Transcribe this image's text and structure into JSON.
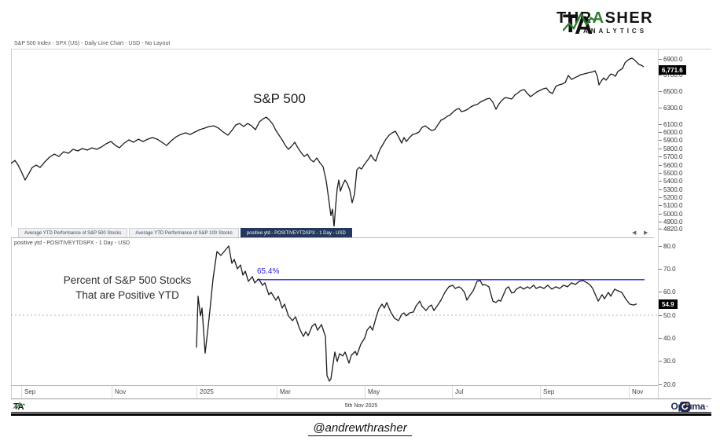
{
  "branding": {
    "monogram": "TA",
    "name_pre": "THR",
    "name_a": "A",
    "name_post": "SHER",
    "sub": "ANALYTICS"
  },
  "window": {
    "title": "S&P 500 Index - SPX (US) - Daily Line Chart - USD - No Layout"
  },
  "tabs": {
    "items": [
      {
        "label": "Average YTD Performance of S&P 500 Stocks",
        "active": false
      },
      {
        "label": "Average YTD Performance of S&P 100 Stocks",
        "active": false
      },
      {
        "label": "positive ytd - POSITIVEYTDSPX - 1 Day - USD",
        "active": true
      }
    ]
  },
  "icons": {
    "tab_scroll_left": "◀",
    "tab_scroll_right": "▶",
    "axis_collapse": "‹"
  },
  "bottom_panel": {
    "header": "positive ytd - POSITIVEYTDSPX - 1 Day - USD"
  },
  "annotations": {
    "sp500_label": "S&P 500",
    "breadth_line1": "Percent of S&P 500 Stocks",
    "breadth_line2": "That are Positive YTD",
    "threshold_label": "65.4%"
  },
  "badges": {
    "sp500_last": "6,771.6",
    "breadth_last": "54.9"
  },
  "x_axis": {
    "labels": [
      "Sep",
      "Nov",
      "2025",
      "Mar",
      "May",
      "Jul",
      "Sep",
      "Nov"
    ]
  },
  "footer": {
    "date": "5th Nov 2025",
    "optuma_name": "Optuma"
  },
  "caption": "@andrewthrasher",
  "colors": {
    "line": "#1c1c1c",
    "threshold_blue": "#2323d9",
    "active_tab": "#24375c",
    "brand_green": "#2f7d33",
    "optuma_navy": "#1c2b52",
    "optuma_orange": "#ef7d23"
  },
  "chart_data": [
    {
      "type": "line",
      "title": "S&P 500",
      "name": "S&P 500 Index - SPX (US) - Daily Line Chart - USD",
      "last": 6771.6,
      "ylim": [
        4820,
        6950
      ],
      "y_ticks": [
        6900,
        6700,
        6500,
        6300,
        6100,
        6000,
        5900,
        5800,
        5700,
        5600,
        5500,
        5400,
        5300,
        5200,
        5100,
        5000,
        4900,
        4820
      ],
      "x_months": [
        "Sep",
        "Nov",
        "2025",
        "Mar",
        "May",
        "Jul",
        "Sep",
        "Nov"
      ],
      "grid": false,
      "points": [
        [
          0,
          5620
        ],
        [
          5,
          5658
        ],
        [
          9,
          5600
        ],
        [
          13,
          5523
        ],
        [
          18,
          5417
        ],
        [
          22,
          5485
        ],
        [
          27,
          5571
        ],
        [
          32,
          5600
        ],
        [
          37,
          5571
        ],
        [
          43,
          5639
        ],
        [
          49,
          5697
        ],
        [
          55,
          5735
        ],
        [
          61,
          5706
        ],
        [
          67,
          5764
        ],
        [
          73,
          5745
        ],
        [
          79,
          5793
        ],
        [
          85,
          5774
        ],
        [
          91,
          5803
        ],
        [
          97,
          5784
        ],
        [
          103,
          5812
        ],
        [
          109,
          5793
        ],
        [
          115,
          5822
        ],
        [
          121,
          5861
        ],
        [
          127,
          5890
        ],
        [
          133,
          5841
        ],
        [
          138,
          5812
        ],
        [
          144,
          5870
        ],
        [
          150,
          5909
        ],
        [
          156,
          5880
        ],
        [
          162,
          5918
        ],
        [
          168,
          5890
        ],
        [
          174,
          5918
        ],
        [
          180,
          5938
        ],
        [
          186,
          5918
        ],
        [
          192,
          5880
        ],
        [
          198,
          5841
        ],
        [
          204,
          5899
        ],
        [
          210,
          5947
        ],
        [
          216,
          5976
        ],
        [
          222,
          5996
        ],
        [
          228,
          5976
        ],
        [
          234,
          6005
        ],
        [
          240,
          6034
        ],
        [
          246,
          6053
        ],
        [
          252,
          6073
        ],
        [
          258,
          6082
        ],
        [
          264,
          6053
        ],
        [
          270,
          6005
        ],
        [
          276,
          5967
        ],
        [
          281,
          6025
        ],
        [
          286,
          6092
        ],
        [
          291,
          6111
        ],
        [
          296,
          6073
        ],
        [
          301,
          6111
        ],
        [
          306,
          6082
        ],
        [
          311,
          6034
        ],
        [
          316,
          6131
        ],
        [
          321,
          6169
        ],
        [
          325,
          6188
        ],
        [
          329,
          6150
        ],
        [
          333,
          6102
        ],
        [
          337,
          6025
        ],
        [
          341,
          5967
        ],
        [
          345,
          5909
        ],
        [
          349,
          5841
        ],
        [
          353,
          5793
        ],
        [
          357,
          5832
        ],
        [
          361,
          5880
        ],
        [
          365,
          5812
        ],
        [
          369,
          5755
        ],
        [
          373,
          5706
        ],
        [
          377,
          5735
        ],
        [
          381,
          5668
        ],
        [
          385,
          5639
        ],
        [
          389,
          5687
        ],
        [
          393,
          5629
        ],
        [
          397,
          5581
        ],
        [
          401,
          5408
        ],
        [
          404,
          5196
        ],
        [
          407,
          4980
        ],
        [
          409,
          5060
        ],
        [
          411,
          4838
        ],
        [
          413,
          5099
        ],
        [
          415,
          5311
        ],
        [
          417,
          5417
        ],
        [
          419,
          5282
        ],
        [
          422,
          5359
        ],
        [
          425,
          5417
        ],
        [
          428,
          5369
        ],
        [
          431,
          5292
        ],
        [
          434,
          5138
        ],
        [
          437,
          5244
        ],
        [
          440,
          5542
        ],
        [
          443,
          5571
        ],
        [
          446,
          5552
        ],
        [
          449,
          5600
        ],
        [
          452,
          5639
        ],
        [
          455,
          5678
        ],
        [
          458,
          5726
        ],
        [
          461,
          5678
        ],
        [
          464,
          5648
        ],
        [
          467,
          5735
        ],
        [
          470,
          5803
        ],
        [
          473,
          5851
        ],
        [
          477,
          5918
        ],
        [
          481,
          5967
        ],
        [
          485,
          5996
        ],
        [
          489,
          6015
        ],
        [
          493,
          5947
        ],
        [
          497,
          5870
        ],
        [
          500,
          5938
        ],
        [
          503,
          5890
        ],
        [
          507,
          5938
        ],
        [
          511,
          5976
        ],
        [
          515,
          5986
        ],
        [
          519,
          6005
        ],
        [
          523,
          6063
        ],
        [
          527,
          6082
        ],
        [
          531,
          6053
        ],
        [
          535,
          6025
        ],
        [
          539,
          6034
        ],
        [
          543,
          6092
        ],
        [
          547,
          6150
        ],
        [
          551,
          6169
        ],
        [
          555,
          6198
        ],
        [
          559,
          6217
        ],
        [
          563,
          6256
        ],
        [
          567,
          6285
        ],
        [
          570,
          6294
        ],
        [
          573,
          6256
        ],
        [
          577,
          6266
        ],
        [
          581,
          6285
        ],
        [
          585,
          6314
        ],
        [
          589,
          6333
        ],
        [
          593,
          6343
        ],
        [
          597,
          6372
        ],
        [
          601,
          6391
        ],
        [
          605,
          6410
        ],
        [
          609,
          6420
        ],
        [
          613,
          6372
        ],
        [
          617,
          6285
        ],
        [
          621,
          6352
        ],
        [
          625,
          6400
        ],
        [
          629,
          6429
        ],
        [
          633,
          6420
        ],
        [
          637,
          6410
        ],
        [
          641,
          6458
        ],
        [
          645,
          6487
        ],
        [
          649,
          6516
        ],
        [
          653,
          6526
        ],
        [
          657,
          6478
        ],
        [
          661,
          6439
        ],
        [
          665,
          6468
        ],
        [
          669,
          6497
        ],
        [
          673,
          6516
        ],
        [
          677,
          6535
        ],
        [
          681,
          6545
        ],
        [
          685,
          6497
        ],
        [
          689,
          6478
        ],
        [
          693,
          6564
        ],
        [
          697,
          6583
        ],
        [
          701,
          6593
        ],
        [
          705,
          6612
        ],
        [
          709,
          6699
        ],
        [
          713,
          6651
        ],
        [
          717,
          6670
        ],
        [
          721,
          6689
        ],
        [
          725,
          6709
        ],
        [
          729,
          6718
        ],
        [
          733,
          6728
        ],
        [
          737,
          6737
        ],
        [
          741,
          6747
        ],
        [
          743,
          6757
        ],
        [
          746,
          6689
        ],
        [
          748,
          6583
        ],
        [
          751,
          6631
        ],
        [
          754,
          6670
        ],
        [
          757,
          6641
        ],
        [
          760,
          6680
        ],
        [
          763,
          6718
        ],
        [
          766,
          6709
        ],
        [
          769,
          6689
        ],
        [
          772,
          6747
        ],
        [
          775,
          6766
        ],
        [
          778,
          6785
        ],
        [
          781,
          6853
        ],
        [
          784,
          6882
        ],
        [
          787,
          6901
        ],
        [
          790,
          6911
        ],
        [
          793,
          6891
        ],
        [
          796,
          6862
        ],
        [
          799,
          6834
        ],
        [
          802,
          6824
        ],
        [
          805,
          6805
        ]
      ]
    },
    {
      "type": "line",
      "title": "Percent of S&P 500 Stocks That are Positive YTD",
      "name": "positive ytd - POSITIVEYTDSPX - 1 Day - USD",
      "last": 54.9,
      "threshold": 65.4,
      "dotted_gridline": 50,
      "ylim": [
        20,
        83
      ],
      "y_ticks": [
        80,
        70,
        60,
        50,
        40,
        30,
        20
      ],
      "grid": false,
      "points": [
        [
          236,
          36
        ],
        [
          238,
          58.2
        ],
        [
          241,
          49.7
        ],
        [
          243,
          53.1
        ],
        [
          247,
          33.5
        ],
        [
          252,
          48.6
        ],
        [
          257,
          65.7
        ],
        [
          262,
          77.6
        ],
        [
          267,
          75.9
        ],
        [
          277,
          80
        ],
        [
          281,
          72.5
        ],
        [
          284,
          74.2
        ],
        [
          288,
          70.1
        ],
        [
          292,
          71.8
        ],
        [
          295,
          67.4
        ],
        [
          298,
          69.1
        ],
        [
          302,
          64.7
        ],
        [
          307,
          66.7
        ],
        [
          310,
          64
        ],
        [
          315,
          65.7
        ],
        [
          320,
          63
        ],
        [
          323,
          64
        ],
        [
          328,
          58.9
        ],
        [
          331,
          59.9
        ],
        [
          337,
          56.5
        ],
        [
          340,
          58.2
        ],
        [
          345,
          53.1
        ],
        [
          348,
          54.8
        ],
        [
          353,
          49.7
        ],
        [
          358,
          47.6
        ],
        [
          362,
          49.3
        ],
        [
          367,
          44.2
        ],
        [
          372,
          40.8
        ],
        [
          375,
          42.8
        ],
        [
          378,
          41.1
        ],
        [
          383,
          45.2
        ],
        [
          387,
          46.3
        ],
        [
          390,
          43.5
        ],
        [
          395,
          45.9
        ],
        [
          400,
          40.8
        ],
        [
          402,
          23.8
        ],
        [
          405,
          21.4
        ],
        [
          407,
          22.4
        ],
        [
          412,
          34
        ],
        [
          415,
          29.9
        ],
        [
          418,
          33.3
        ],
        [
          422,
          32.3
        ],
        [
          425,
          34
        ],
        [
          430,
          29.2
        ],
        [
          433,
          32.6
        ],
        [
          438,
          34.3
        ],
        [
          440,
          32.6
        ],
        [
          445,
          37.4
        ],
        [
          450,
          40.1
        ],
        [
          453,
          43.5
        ],
        [
          457,
          45.2
        ],
        [
          460,
          43.5
        ],
        [
          465,
          49.7
        ],
        [
          468,
          52.7
        ],
        [
          472,
          54.8
        ],
        [
          475,
          53.1
        ],
        [
          478,
          55.5
        ],
        [
          483,
          51.4
        ],
        [
          488,
          48.6
        ],
        [
          493,
          47.6
        ],
        [
          497,
          50.3
        ],
        [
          500,
          51
        ],
        [
          503,
          49.7
        ],
        [
          507,
          51
        ],
        [
          512,
          51.4
        ],
        [
          515,
          53.8
        ],
        [
          520,
          56.1
        ],
        [
          523,
          53.8
        ],
        [
          528,
          52
        ],
        [
          532,
          53.8
        ],
        [
          535,
          54.4
        ],
        [
          538,
          52
        ],
        [
          543,
          54.4
        ],
        [
          547,
          56.5
        ],
        [
          552,
          59.9
        ],
        [
          557,
          62.3
        ],
        [
          562,
          63
        ],
        [
          565,
          61.6
        ],
        [
          570,
          62.3
        ],
        [
          573,
          61.6
        ],
        [
          577,
          59.9
        ],
        [
          580,
          56.5
        ],
        [
          583,
          58.2
        ],
        [
          588,
          60.6
        ],
        [
          593,
          64.7
        ],
        [
          597,
          65
        ],
        [
          600,
          63
        ],
        [
          603,
          63.3
        ],
        [
          608,
          62.3
        ],
        [
          613,
          56.1
        ],
        [
          617,
          55.5
        ],
        [
          620,
          56.5
        ],
        [
          623,
          56.1
        ],
        [
          630,
          61.6
        ],
        [
          633,
          62.3
        ],
        [
          637,
          59.6
        ],
        [
          640,
          59.9
        ],
        [
          643,
          61.3
        ],
        [
          648,
          62.3
        ],
        [
          652,
          61.3
        ],
        [
          657,
          62.3
        ],
        [
          660,
          61.6
        ],
        [
          665,
          63
        ],
        [
          668,
          61.6
        ],
        [
          673,
          62.3
        ],
        [
          678,
          61.6
        ],
        [
          683,
          63
        ],
        [
          688,
          61.3
        ],
        [
          693,
          62.3
        ],
        [
          698,
          61.6
        ],
        [
          703,
          63
        ],
        [
          708,
          62.3
        ],
        [
          713,
          64
        ],
        [
          718,
          63.3
        ],
        [
          723,
          64.7
        ],
        [
          728,
          65
        ],
        [
          733,
          64
        ],
        [
          737,
          63
        ],
        [
          740,
          61.6
        ],
        [
          747,
          56.1
        ],
        [
          752,
          58.9
        ],
        [
          755,
          57.1
        ],
        [
          760,
          59.9
        ],
        [
          763,
          58.2
        ],
        [
          768,
          61.3
        ],
        [
          772,
          60.6
        ],
        [
          777,
          59.9
        ],
        [
          782,
          57.1
        ],
        [
          787,
          54.8
        ],
        [
          792,
          54.4
        ],
        [
          796,
          54.9
        ]
      ]
    }
  ]
}
